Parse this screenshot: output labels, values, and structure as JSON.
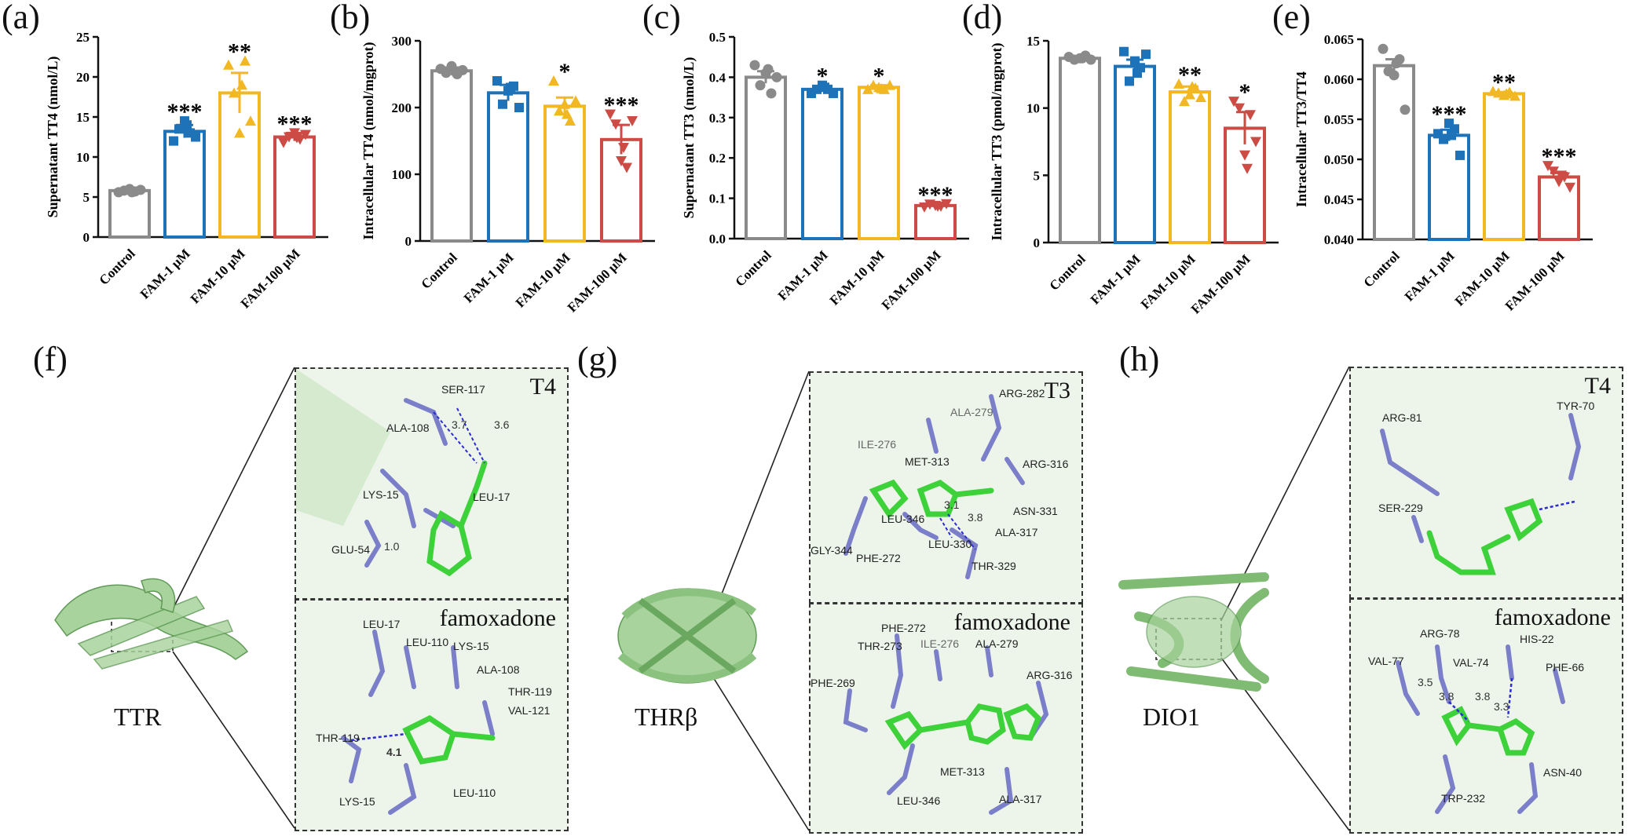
{
  "panels": {
    "a": "(a)",
    "b": "(b)",
    "c": "(c)",
    "d": "(d)",
    "e": "(e)",
    "f": "(f)",
    "g": "(g)",
    "h": "(h)"
  },
  "chart_data": [
    {
      "id": "a",
      "type": "bar",
      "categories": [
        "Control",
        "FAM-1 μM",
        "FAM-10 μM",
        "FAM-100 μM"
      ],
      "values": [
        5.8,
        13.2,
        18.0,
        12.5
      ],
      "errors": [
        0.3,
        0.8,
        2.5,
        0.5
      ],
      "significance": [
        "",
        "***",
        "**",
        "***"
      ],
      "ylabel": "Supernatant TT4 (nmol/L)",
      "ylim": [
        0,
        25
      ],
      "yticks": [
        0,
        5,
        10,
        15,
        20,
        25
      ],
      "ytick_labels": [
        "0",
        "5",
        "10",
        "15",
        "20",
        "25"
      ],
      "points": [
        [
          5.6,
          5.8,
          6.0,
          5.7,
          5.9,
          5.6
        ],
        [
          12.0,
          13.5,
          14.5,
          13.0,
          12.5,
          14.0
        ],
        [
          21.5,
          18.0,
          13.0,
          22.0,
          14.5,
          19.0
        ],
        [
          11.8,
          12.5,
          13.0,
          12.2,
          12.8,
          12.4
        ]
      ]
    },
    {
      "id": "b",
      "type": "bar",
      "categories": [
        "Control",
        "FAM-1 μM",
        "FAM-10 μM",
        "FAM-100 μM"
      ],
      "values": [
        255,
        222,
        202,
        152
      ],
      "errors": [
        5,
        12,
        13,
        22
      ],
      "significance": [
        "",
        "",
        "*",
        "***"
      ],
      "ylabel": "Intracellular TT4 (nmol/mgprot)",
      "ylim": [
        0,
        300
      ],
      "yticks": [
        0,
        100,
        200,
        300
      ],
      "ytick_labels": [
        "0",
        "100",
        "200",
        "300"
      ],
      "points": [
        [
          258,
          252,
          262,
          250,
          256,
          255
        ],
        [
          240,
          205,
          225,
          232,
          200,
          230
        ],
        [
          240,
          195,
          205,
          180,
          210,
          190
        ],
        [
          190,
          175,
          120,
          110,
          180,
          140
        ]
      ]
    },
    {
      "id": "c",
      "type": "bar",
      "categories": [
        "Control",
        "FAM-1 μM",
        "FAM-10 μM",
        "FAM-100 μM"
      ],
      "values": [
        0.4,
        0.37,
        0.375,
        0.082
      ],
      "errors": [
        0.015,
        0.006,
        0.005,
        0.004
      ],
      "significance": [
        "",
        "*",
        "*",
        "***"
      ],
      "ylabel": "Supernatant TT3 (nmol/L)",
      "ylim": [
        0,
        0.5
      ],
      "yticks": [
        0,
        0.1,
        0.2,
        0.3,
        0.4,
        0.5
      ],
      "ytick_labels": [
        "0.0",
        "0.1",
        "0.2",
        "0.3",
        "0.4",
        "0.5"
      ],
      "points": [
        [
          0.43,
          0.38,
          0.41,
          0.36,
          0.4,
          0.42
        ],
        [
          0.36,
          0.37,
          0.38,
          0.37,
          0.36,
          0.375
        ],
        [
          0.37,
          0.38,
          0.375,
          0.37,
          0.38,
          0.372
        ],
        [
          0.078,
          0.085,
          0.082,
          0.08,
          0.086,
          0.08
        ]
      ]
    },
    {
      "id": "d",
      "type": "bar",
      "categories": [
        "Control",
        "FAM-1 μM",
        "FAM-10 μM",
        "FAM-100 μM"
      ],
      "values": [
        13.7,
        13.1,
        11.2,
        8.5
      ],
      "errors": [
        0.15,
        0.5,
        0.4,
        1.2
      ],
      "significance": [
        "",
        "",
        "**",
        "*"
      ],
      "ylabel": "Intracellular TT3 (pmol/mgprot)",
      "ylim": [
        0,
        15
      ],
      "yticks": [
        0,
        5,
        10,
        15
      ],
      "ytick_labels": [
        "0",
        "5",
        "10",
        "15"
      ],
      "points": [
        [
          13.8,
          13.6,
          13.7,
          13.9,
          13.6,
          13.7
        ],
        [
          14.2,
          12.0,
          13.5,
          13.0,
          14.0,
          12.6
        ],
        [
          11.8,
          10.5,
          11.0,
          11.5,
          10.8,
          11.6
        ],
        [
          10.5,
          10.0,
          6.5,
          9.5,
          7.5,
          5.5
        ]
      ]
    },
    {
      "id": "e",
      "type": "bar",
      "categories": [
        "Control",
        "FAM-1 μM",
        "FAM-10 μM",
        "FAM-100 μM"
      ],
      "values": [
        0.0617,
        0.053,
        0.0582,
        0.0478
      ],
      "errors": [
        0.0008,
        0.0007,
        0.0002,
        0.0005
      ],
      "significance": [
        "",
        "***",
        "**",
        "***"
      ],
      "ylabel": "Intracellular TT3/TT4",
      "ylim": [
        0.04,
        0.065
      ],
      "yticks": [
        0.04,
        0.045,
        0.05,
        0.055,
        0.06,
        0.065
      ],
      "ytick_labels": [
        "0.040",
        "0.045",
        "0.050",
        "0.055",
        "0.060",
        "0.065"
      ],
      "points": [
        [
          0.0638,
          0.061,
          0.0605,
          0.0625,
          0.0562,
          0.062
        ],
        [
          0.0532,
          0.0525,
          0.0545,
          0.0538,
          0.0505,
          0.053
        ],
        [
          0.0585,
          0.0583,
          0.058,
          0.0584,
          0.0579,
          0.0582
        ],
        [
          0.0492,
          0.0485,
          0.0472,
          0.0478,
          0.0465,
          0.048
        ]
      ]
    }
  ],
  "colors": {
    "series": [
      "#8a8a8a",
      "#1d72b8",
      "#f2b823",
      "#cc4b45"
    ]
  },
  "docking": [
    {
      "id": "f",
      "protein": "TTR",
      "top": {
        "title": "T4",
        "residues": [
          "SER-117",
          "ALA-108",
          "LYS-15",
          "LEU-17",
          "GLU-54"
        ],
        "distances": [
          "3.7",
          "3.6",
          "1.0"
        ]
      },
      "bottom": {
        "title": "famoxadone",
        "residues": [
          "LEU-17",
          "LEU-110",
          "LYS-15",
          "ALA-108",
          "THR-119",
          "VAL-121",
          "THR-119",
          "LYS-15",
          "LEU-110"
        ],
        "distances": [
          "4.1"
        ]
      }
    },
    {
      "id": "g",
      "protein": "THRβ",
      "top": {
        "title": "T3",
        "residues": [
          "ARG-282",
          "ALA-279",
          "ILE-276",
          "MET-313",
          "ARG-316",
          "ASN-331",
          "LEU-346",
          "ALA-317",
          "GLY-344",
          "PHE-272",
          "LEU-330",
          "THR-329"
        ],
        "distances": [
          "3.1",
          "3.8"
        ]
      },
      "bottom": {
        "title": "famoxadone",
        "residues": [
          "PHE-272",
          "THR-273",
          "ILE-276",
          "ALA-279",
          "PHE-269",
          "ARG-316",
          "MET-313",
          "LEU-346",
          "ALA-317"
        ],
        "distances": []
      }
    },
    {
      "id": "h",
      "protein": "DIO1",
      "top": {
        "title": "T4",
        "residues": [
          "ARG-81",
          "TYR-70",
          "SER-229"
        ],
        "distances": []
      },
      "bottom": {
        "title": "famoxadone",
        "residues": [
          "ARG-78",
          "HIS-22",
          "VAL-77",
          "VAL-74",
          "PHE-66",
          "TRP-232",
          "ASN-40"
        ],
        "distances": [
          "3.5",
          "3.8",
          "3.8",
          "3.3"
        ]
      }
    }
  ]
}
